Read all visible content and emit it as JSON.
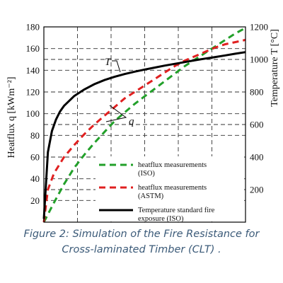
{
  "chart_data": {
    "type": "line",
    "left_axis": {
      "label": "Heatflux q [kWm⁻²]",
      "ylim": [
        0,
        180
      ],
      "ticks": [
        20,
        40,
        60,
        80,
        100,
        120,
        140,
        160,
        180
      ]
    },
    "right_axis": {
      "label": "Temperature T [°C]",
      "ylim": [
        0,
        1200
      ],
      "ticks": [
        200,
        400,
        600,
        800,
        1000,
        1200
      ]
    },
    "x_range": [
      0,
      1
    ],
    "grid": true,
    "series": [
      {
        "name": "heatflux measurements (ISO)",
        "legend_lines": [
          "heatflux measurements",
          "(ISO)"
        ],
        "axis": "left",
        "color": "#22a02a",
        "style": "dashed",
        "points": [
          [
            0.0,
            0
          ],
          [
            0.05,
            18
          ],
          [
            0.1,
            35
          ],
          [
            0.15,
            50
          ],
          [
            0.2,
            62
          ],
          [
            0.25,
            73
          ],
          [
            0.3,
            83
          ],
          [
            0.35,
            93
          ],
          [
            0.4,
            101
          ],
          [
            0.45,
            109
          ],
          [
            0.5,
            116
          ],
          [
            0.55,
            123
          ],
          [
            0.6,
            130
          ],
          [
            0.65,
            137
          ],
          [
            0.7,
            144
          ],
          [
            0.75,
            150
          ],
          [
            0.8,
            156
          ],
          [
            0.85,
            162
          ],
          [
            0.9,
            168
          ],
          [
            0.95,
            174
          ],
          [
            1.0,
            179
          ]
        ]
      },
      {
        "name": "heatflux measurements (ASTM)",
        "legend_lines": [
          "heatflux measurements",
          "(ASTM)"
        ],
        "axis": "left",
        "color": "#e02020",
        "style": "dashed",
        "points": [
          [
            0.0,
            0
          ],
          [
            0.02,
            30
          ],
          [
            0.05,
            45
          ],
          [
            0.1,
            60
          ],
          [
            0.15,
            71
          ],
          [
            0.2,
            81
          ],
          [
            0.25,
            90
          ],
          [
            0.3,
            98
          ],
          [
            0.35,
            106
          ],
          [
            0.4,
            114
          ],
          [
            0.45,
            120
          ],
          [
            0.5,
            126
          ],
          [
            0.55,
            132
          ],
          [
            0.6,
            138
          ],
          [
            0.65,
            144
          ],
          [
            0.7,
            149
          ],
          [
            0.75,
            153
          ],
          [
            0.8,
            157
          ],
          [
            0.85,
            161
          ],
          [
            0.9,
            164
          ],
          [
            0.95,
            166
          ],
          [
            1.0,
            168
          ]
        ]
      },
      {
        "name": "Temperature standard fire exposure (ISO)",
        "legend_lines": [
          "Temperature standard fire",
          "exposure (ISO)"
        ],
        "axis": "right",
        "color": "#000000",
        "style": "solid",
        "points": [
          [
            0.0,
            20
          ],
          [
            0.02,
            430
          ],
          [
            0.04,
            560
          ],
          [
            0.06,
            630
          ],
          [
            0.08,
            680
          ],
          [
            0.1,
            715
          ],
          [
            0.15,
            775
          ],
          [
            0.2,
            815
          ],
          [
            0.25,
            848
          ],
          [
            0.3,
            873
          ],
          [
            0.35,
            893
          ],
          [
            0.4,
            910
          ],
          [
            0.45,
            925
          ],
          [
            0.5,
            938
          ],
          [
            0.55,
            950
          ],
          [
            0.6,
            962
          ],
          [
            0.65,
            973
          ],
          [
            0.7,
            984
          ],
          [
            0.75,
            995
          ],
          [
            0.8,
            1005
          ],
          [
            0.85,
            1015
          ],
          [
            0.9,
            1025
          ],
          [
            0.95,
            1035
          ],
          [
            1.0,
            1045
          ]
        ]
      }
    ],
    "annotations": {
      "T": "T",
      "q": "q"
    }
  },
  "caption": {
    "line1": "Figure 2: Simulation of the Fire Resistance for",
    "line2": "Cross-laminated Timber (CLT) ."
  }
}
